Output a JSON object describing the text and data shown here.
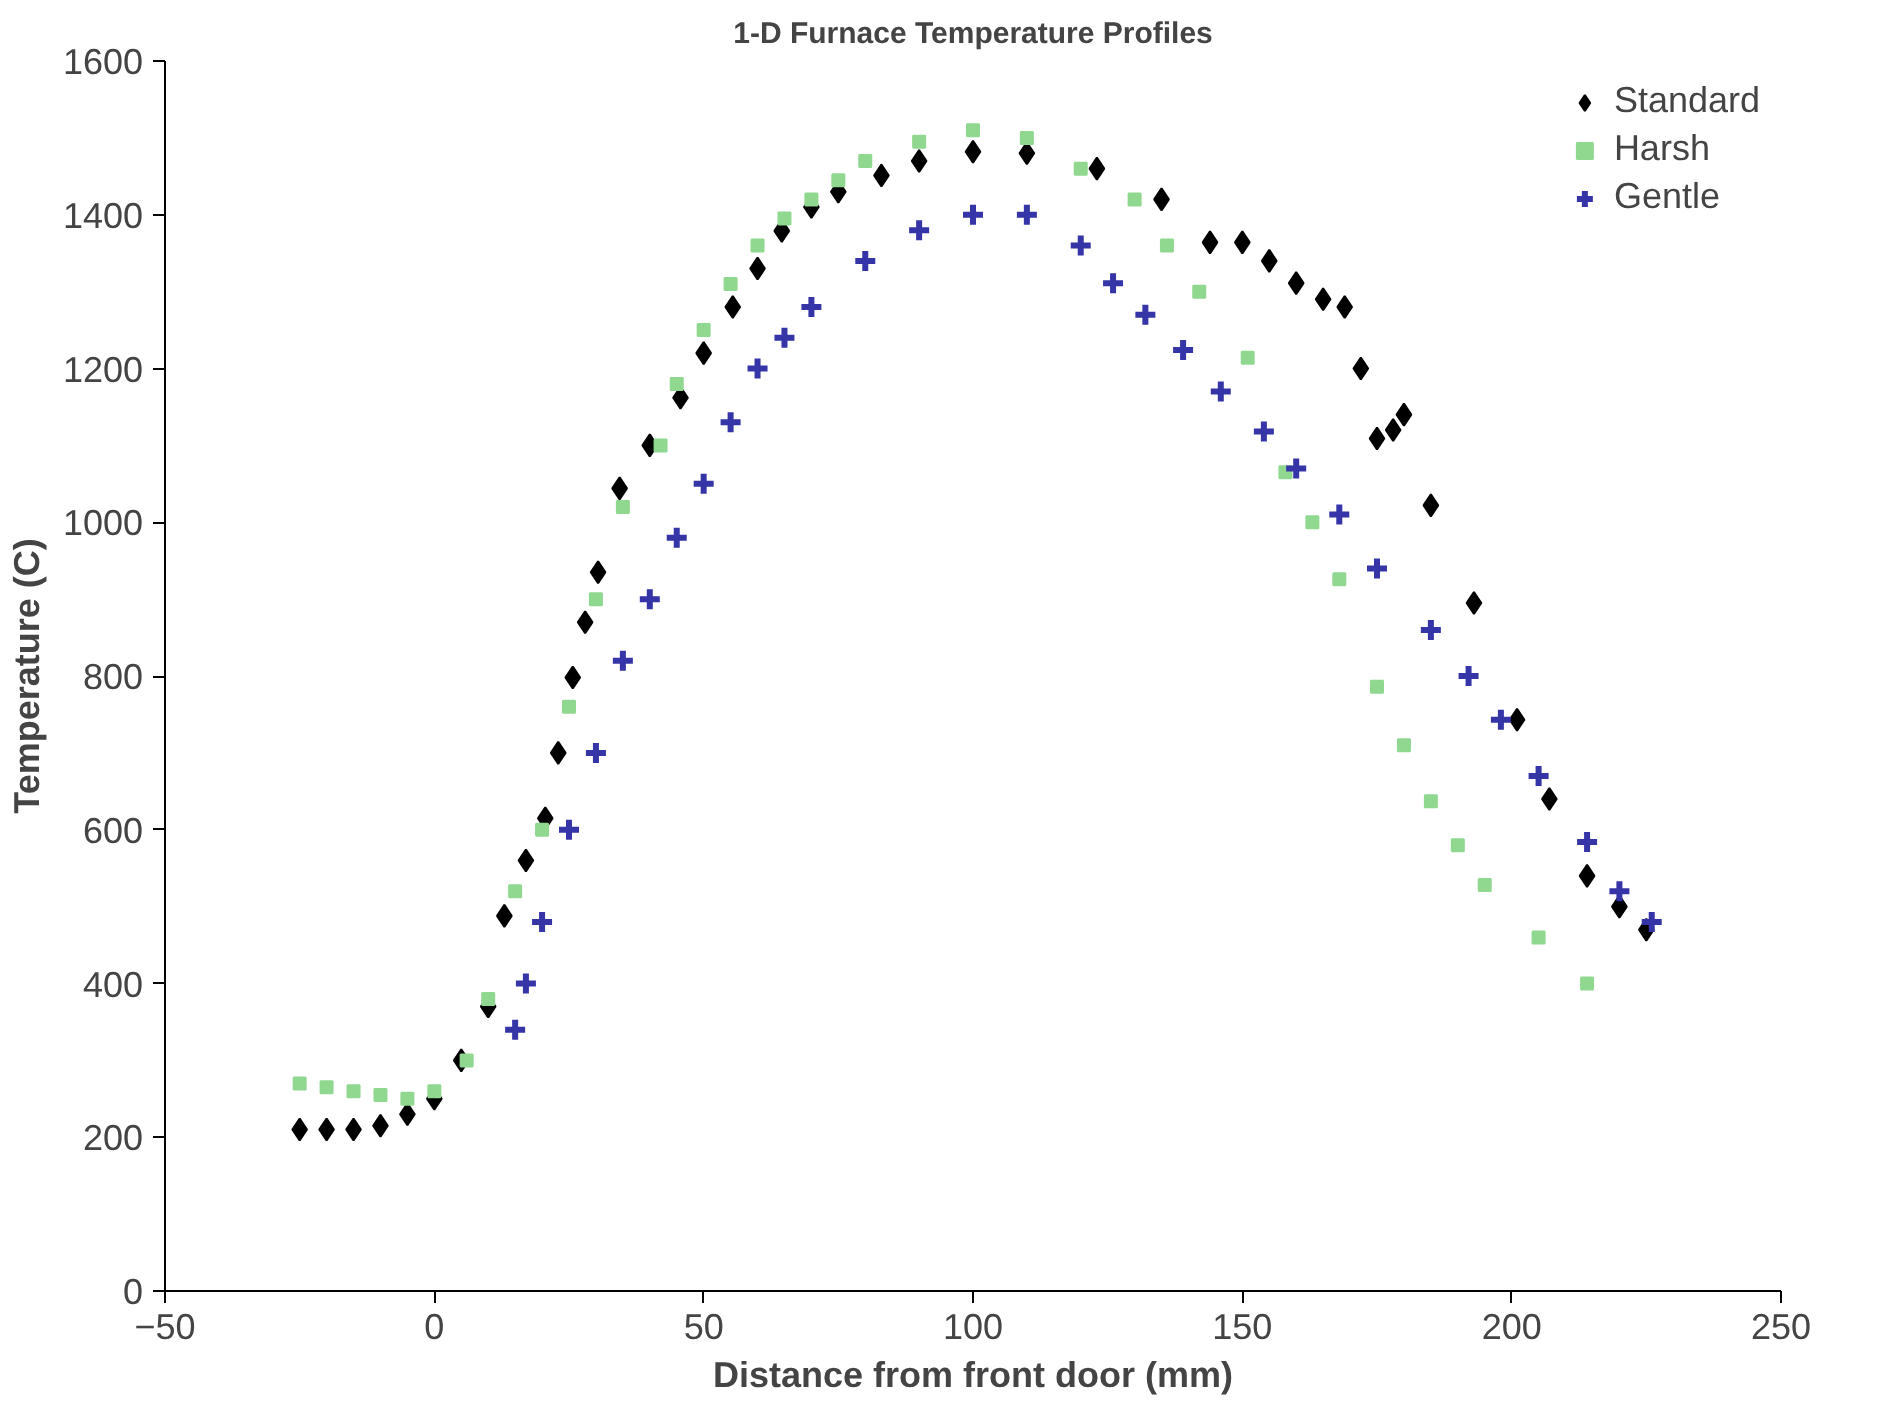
{
  "chart_data": {
    "type": "scatter",
    "title": "1-D Furnace Temperature Profiles",
    "xlabel": "Distance from front door (mm)",
    "ylabel": "Temperature (C)",
    "xlim": [
      -50,
      250
    ],
    "xticks": [
      -50,
      0,
      50,
      100,
      150,
      200,
      250
    ],
    "ylim": [
      0,
      1600
    ],
    "yticks": [
      0,
      200,
      400,
      600,
      800,
      1000,
      1200,
      1400,
      1600
    ],
    "grid": false,
    "legend": "top right",
    "series": [
      {
        "name": "Standard",
        "color": "#000000",
        "marker": "diamond",
        "x": [
          -25,
          -20,
          -15,
          -10,
          -5,
          0,
          5,
          10,
          13,
          17,
          20.6,
          23,
          25.7,
          28,
          30.4,
          34.4,
          40,
          45.7,
          50,
          55.4,
          60,
          64.5,
          70,
          75,
          83,
          90,
          100,
          110,
          123,
          135,
          144,
          150,
          155,
          160,
          165,
          169,
          172,
          175,
          178,
          180,
          185,
          193,
          201,
          207,
          214,
          220,
          225
        ],
        "values": [
          210,
          210,
          210,
          215,
          230,
          250,
          300,
          370,
          488,
          560,
          615,
          700,
          798,
          870,
          935,
          1044,
          1100,
          1162,
          1220,
          1280,
          1330,
          1379,
          1410,
          1430,
          1451,
          1470,
          1482,
          1480,
          1460,
          1420,
          1364,
          1364,
          1340,
          1311,
          1290,
          1280,
          1200,
          1109,
          1120,
          1140,
          1022,
          895,
          743,
          640,
          540,
          500,
          470
        ]
      },
      {
        "name": "Harsh",
        "color": "#90d890",
        "marker": "square",
        "x": [
          -25,
          -20,
          -15,
          -10,
          -5,
          0,
          6,
          10,
          15,
          20,
          25,
          30,
          35,
          42,
          45,
          50,
          55,
          60,
          65,
          70,
          75,
          80,
          90,
          100,
          110,
          120,
          130,
          136,
          142,
          151,
          158,
          163,
          168,
          175,
          180,
          185,
          190,
          195,
          205,
          214
        ],
        "values": [
          270,
          265,
          260,
          255,
          250,
          260,
          300,
          380,
          520,
          600,
          760,
          900,
          1020,
          1100,
          1180,
          1250,
          1310,
          1360,
          1395,
          1420,
          1445,
          1470,
          1495,
          1510,
          1500,
          1460,
          1420,
          1360,
          1300,
          1214,
          1065,
          1000,
          926,
          786,
          710,
          637,
          580,
          528,
          460,
          400
        ]
      },
      {
        "name": "Gentle",
        "color": "#3535a8",
        "marker": "cross",
        "x": [
          15,
          17,
          20,
          25,
          30,
          35,
          40,
          45,
          50,
          55,
          60,
          65,
          70,
          80,
          90,
          100,
          110,
          120,
          126,
          132,
          139,
          146,
          154,
          160,
          168,
          175,
          185,
          192,
          198,
          205,
          214,
          220,
          226
        ],
        "values": [
          340,
          400,
          480,
          600,
          700,
          820,
          900,
          980,
          1050,
          1130,
          1200,
          1240,
          1280,
          1340,
          1380,
          1400,
          1400,
          1360,
          1311,
          1270,
          1224,
          1170,
          1118,
          1070,
          1010,
          940,
          860,
          800,
          743,
          670,
          584,
          520,
          480
        ]
      }
    ]
  }
}
